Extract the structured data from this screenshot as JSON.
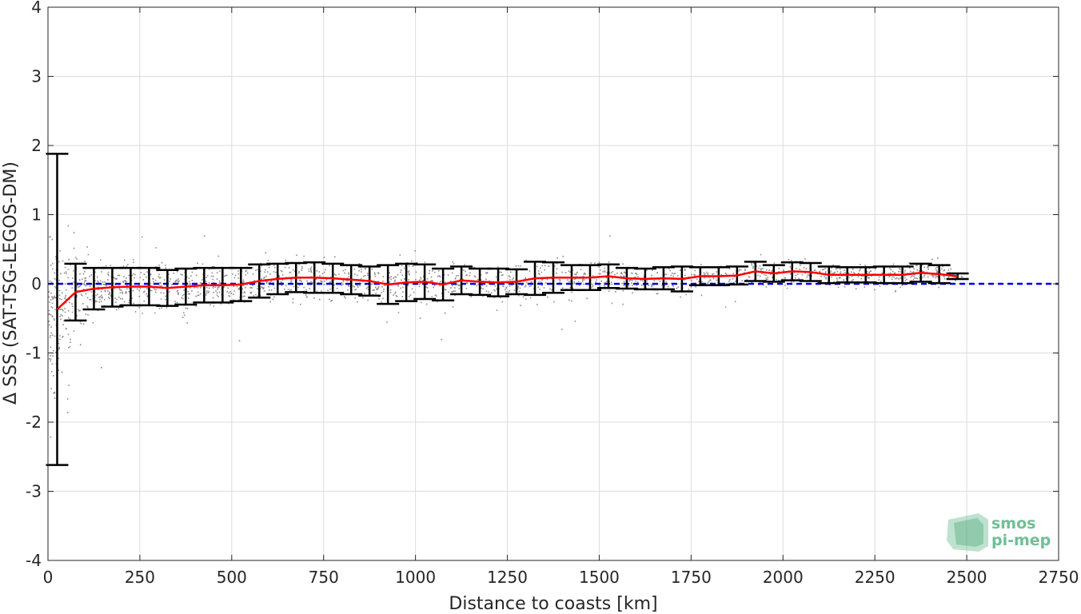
{
  "chart_data": {
    "type": "scatter",
    "xlabel": "Distance to coasts [km]",
    "ylabel": "Δ SSS (SAT-TSG-LEGOS-DM)",
    "xlim": [
      0,
      2750
    ],
    "ylim": [
      -4,
      4
    ],
    "xticks": [
      0,
      250,
      500,
      750,
      1000,
      1250,
      1500,
      1750,
      2000,
      2250,
      2500,
      2750
    ],
    "yticks": [
      -4,
      -3,
      -2,
      -1,
      0,
      1,
      2,
      3,
      4
    ],
    "grid": true,
    "reference_line": {
      "y": 0,
      "style": "dashed",
      "color": "#0000dd"
    },
    "colors": {
      "scatter": "#808080",
      "mean": "#ff0000",
      "errorbar": "#000000"
    },
    "series": [
      {
        "type": "line_with_errorbars",
        "x": [
          25,
          75,
          125,
          175,
          225,
          275,
          325,
          375,
          425,
          475,
          525,
          575,
          625,
          675,
          725,
          775,
          825,
          875,
          925,
          975,
          1025,
          1075,
          1125,
          1175,
          1225,
          1275,
          1325,
          1375,
          1425,
          1475,
          1525,
          1575,
          1625,
          1675,
          1725,
          1775,
          1825,
          1875,
          1925,
          1975,
          2025,
          2075,
          2125,
          2175,
          2225,
          2275,
          2325,
          2375,
          2425,
          2475
        ],
        "mean": [
          -0.37,
          -0.12,
          -0.07,
          -0.05,
          -0.04,
          -0.04,
          -0.06,
          -0.04,
          -0.02,
          -0.02,
          -0.01,
          0.04,
          0.07,
          0.09,
          0.09,
          0.08,
          0.06,
          0.04,
          -0.01,
          0.02,
          0.03,
          -0.01,
          0.05,
          0.03,
          0.02,
          0.03,
          0.08,
          0.09,
          0.09,
          0.09,
          0.11,
          0.08,
          0.07,
          0.08,
          0.07,
          0.11,
          0.11,
          0.12,
          0.18,
          0.15,
          0.18,
          0.17,
          0.13,
          0.13,
          0.13,
          0.13,
          0.13,
          0.16,
          0.14,
          0.11
        ],
        "std": [
          2.25,
          0.41,
          0.3,
          0.28,
          0.27,
          0.27,
          0.26,
          0.26,
          0.25,
          0.25,
          0.24,
          0.24,
          0.22,
          0.21,
          0.22,
          0.21,
          0.21,
          0.21,
          0.28,
          0.27,
          0.25,
          0.23,
          0.2,
          0.19,
          0.2,
          0.18,
          0.24,
          0.22,
          0.18,
          0.18,
          0.17,
          0.15,
          0.15,
          0.16,
          0.18,
          0.13,
          0.13,
          0.13,
          0.14,
          0.12,
          0.13,
          0.13,
          0.12,
          0.11,
          0.11,
          0.12,
          0.12,
          0.13,
          0.13,
          0.04
        ]
      }
    ]
  },
  "logo": {
    "line1": "smos",
    "line2": "pi-mep"
  }
}
